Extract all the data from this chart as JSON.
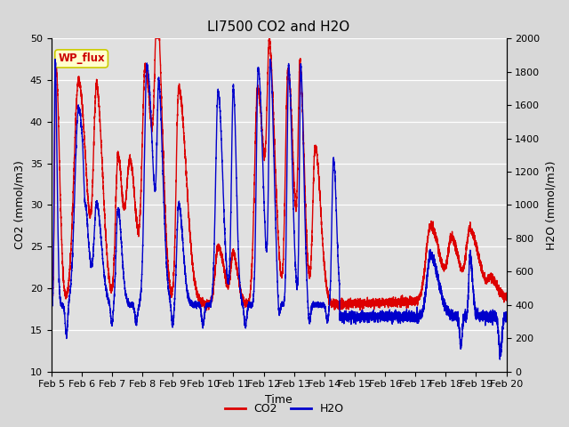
{
  "title": "LI7500 CO2 and H2O",
  "xlabel": "Time",
  "ylabel_left": "CO2 (mmol/m3)",
  "ylabel_right": "H2O (mmol/m3)",
  "ylim_left": [
    10,
    50
  ],
  "ylim_right": [
    0,
    2000
  ],
  "yticks_left": [
    10,
    15,
    20,
    25,
    30,
    35,
    40,
    45,
    50
  ],
  "yticks_right": [
    0,
    200,
    400,
    600,
    800,
    1000,
    1200,
    1400,
    1600,
    1800,
    2000
  ],
  "xtick_labels": [
    "Feb 5",
    "Feb 6",
    "Feb 7",
    "Feb 8",
    "Feb 9",
    "Feb 10",
    "Feb 11",
    "Feb 12",
    "Feb 13",
    "Feb 14",
    "Feb 15",
    "Feb 16",
    "Feb 17",
    "Feb 18",
    "Feb 19",
    "Feb 20"
  ],
  "co2_color": "#dd0000",
  "h2o_color": "#0000cc",
  "legend_co2": "CO2",
  "legend_h2o": "H2O",
  "wp_flux_label": "WP_flux",
  "wp_flux_bg": "#ffffcc",
  "wp_flux_border": "#cccc00",
  "wp_flux_text_color": "#cc0000",
  "fig_bg": "#d8d8d8",
  "plot_bg": "#e0e0e0",
  "grid_color": "#ffffff",
  "title_fontsize": 11,
  "axis_label_fontsize": 9,
  "tick_fontsize": 8,
  "legend_fontsize": 9,
  "line_width": 1.0
}
